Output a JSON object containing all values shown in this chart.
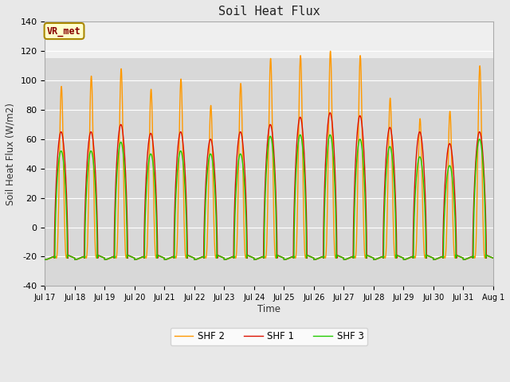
{
  "title": "Soil Heat Flux",
  "ylabel": "Soil Heat Flux (W/m2)",
  "xlabel": "Time",
  "ylim": [
    -40,
    140
  ],
  "xlim": [
    0,
    360
  ],
  "fig_bg_color": "#e8e8e8",
  "plot_bg_color": "#d8d8d8",
  "colors": {
    "SHF 1": "#dd1100",
    "SHF 2": "#ff9900",
    "SHF 3": "#22cc00"
  },
  "linewidth": 1.0,
  "xtick_labels": [
    "Jul 17",
    "Jul 18",
    "Jul 19",
    "Jul 20",
    "Jul 21",
    "Jul 22",
    "Jul 23",
    "Jul 24",
    "Jul 25",
    "Jul 26",
    "Jul 27",
    "Jul 28",
    "Jul 29",
    "Jul 30",
    "Jul 31",
    "Aug 1"
  ],
  "ytick_values": [
    -40,
    -20,
    0,
    20,
    40,
    60,
    80,
    100,
    120,
    140
  ],
  "annotation_text": "VR_met",
  "annotation_bg": "#ffffcc",
  "annotation_border": "#aa8800",
  "total_days": 15,
  "dt": 0.1,
  "day_peaks1": [
    65,
    65,
    70,
    64,
    65,
    60,
    65,
    70,
    75,
    78,
    76,
    68,
    65,
    57,
    65
  ],
  "day_peaks2": [
    96,
    103,
    108,
    94,
    101,
    83,
    98,
    115,
    117,
    120,
    117,
    88,
    74,
    79,
    110
  ],
  "day_peaks3": [
    52,
    52,
    58,
    50,
    52,
    50,
    50,
    62,
    63,
    63,
    60,
    55,
    48,
    42,
    60
  ],
  "night_min": -21,
  "shf1_rise": 7.5,
  "shf1_set": 18.5,
  "shf1_peak": 13.0,
  "shf2_rise": 9.0,
  "shf2_set": 17.5,
  "shf2_peak": 13.0,
  "shf3_rise": 8.0,
  "shf3_set": 18.0,
  "shf3_peak": 13.5,
  "sharpness2": 3.0
}
